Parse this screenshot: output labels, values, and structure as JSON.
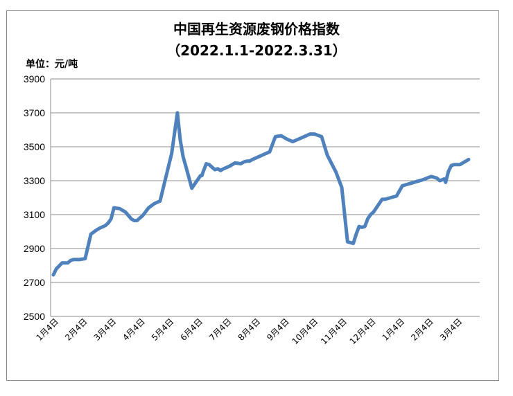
{
  "chart_data": {
    "type": "line",
    "title": "中国再生资源废钢价格指数",
    "subtitle": "（2022.1.1-2022.3.31）",
    "unit_label": "单位：元/吨",
    "ylim": [
      2500,
      3900
    ],
    "yticks": [
      2500,
      2700,
      2900,
      3100,
      3300,
      3500,
      3700,
      3900
    ],
    "grid": true,
    "legend": "none",
    "x_categories": [
      "1月4日",
      "2月4日",
      "3月4日",
      "4月4日",
      "5月4日",
      "6月4日",
      "7月4日",
      "8月4日",
      "9月4日",
      "10月4日",
      "11月4日",
      "12月4日",
      "1月4日",
      "2月4日",
      "3月4日"
    ],
    "line_color": "#4f81bd",
    "series": [
      {
        "x": [
          0,
          0.1,
          0.3,
          0.5,
          0.6,
          0.7,
          0.9,
          1.1,
          1.3,
          1.5,
          1.6,
          1.8,
          1.9,
          2.0,
          2.1,
          2.3,
          2.5,
          2.7,
          2.8,
          2.9,
          3.0,
          3.1,
          3.3,
          3.5,
          3.7,
          3.9,
          4.1,
          4.3,
          4.4,
          4.5,
          4.6,
          4.8,
          4.9,
          5.1,
          5.15,
          5.2,
          5.3,
          5.4,
          5.6,
          5.7,
          5.8,
          5.9,
          6.1,
          6.3,
          6.5,
          6.6,
          6.7,
          6.8,
          6.9,
          7.1,
          7.3,
          7.5,
          7.7,
          7.9,
          8.1,
          8.3,
          8.5,
          8.7,
          8.9,
          9.05,
          9.3,
          9.5,
          9.8,
          10.0,
          10.2,
          10.4,
          10.5,
          10.6,
          10.7,
          10.8,
          10.9,
          11.0,
          11.1,
          11.2,
          11.4,
          11.5,
          11.6,
          11.7,
          11.9,
          12.1,
          12.3,
          12.4,
          12.6,
          12.8,
          13.1,
          13.3,
          13.4,
          13.55,
          13.6,
          13.7,
          13.8,
          13.9,
          14.1,
          14.4
        ],
        "y": [
          2745,
          2780,
          2815,
          2815,
          2830,
          2835,
          2835,
          2840,
          2985,
          3010,
          3020,
          3035,
          3050,
          3075,
          3140,
          3135,
          3115,
          3075,
          3065,
          3065,
          3080,
          3095,
          3140,
          3165,
          3180,
          3320,
          3460,
          3700,
          3540,
          3440,
          3380,
          3255,
          3280,
          3330,
          3330,
          3355,
          3400,
          3395,
          3365,
          3370,
          3360,
          3370,
          3385,
          3405,
          3400,
          3410,
          3415,
          3415,
          3425,
          3440,
          3455,
          3470,
          3560,
          3565,
          3545,
          3530,
          3545,
          3560,
          3575,
          3575,
          3560,
          3450,
          3350,
          3260,
          2940,
          2930,
          2985,
          3030,
          3025,
          3030,
          3075,
          3100,
          3115,
          3140,
          3190,
          3190,
          3195,
          3200,
          3210,
          3270,
          3280,
          3285,
          3295,
          3305,
          3325,
          3315,
          3300,
          3310,
          3290,
          3355,
          3390,
          3395,
          3395,
          3425
        ]
      }
    ]
  }
}
